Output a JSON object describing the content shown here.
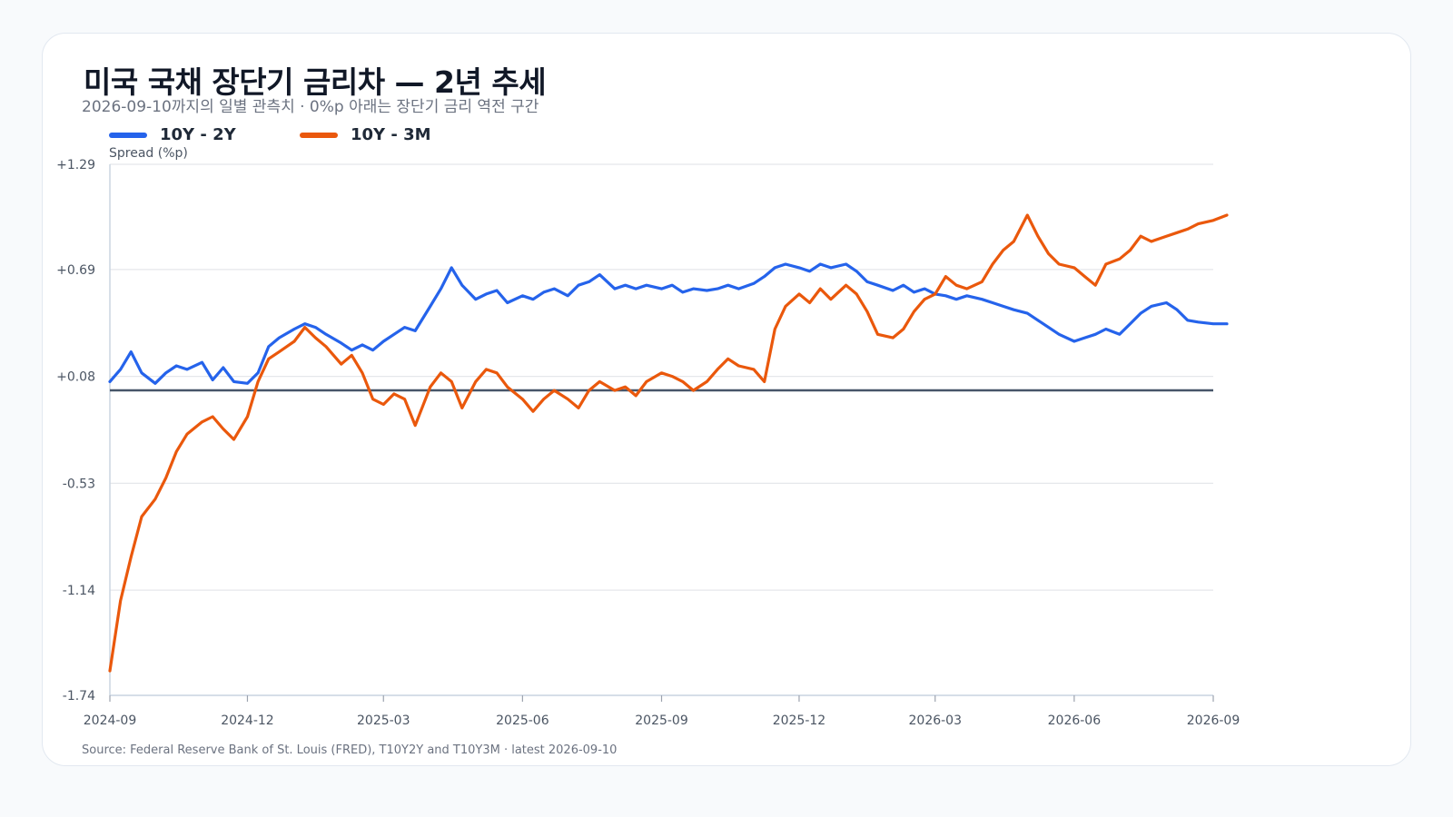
{
  "title": "미국 국채 장단기 금리차 — 2년 추세",
  "subtitle": "2026-09-10까지의 일별 관측치 · 0%p 아래는 장단기 금리 역전 구간",
  "source": "Source: Federal Reserve Bank of St. Louis (FRED), T10Y2Y and T10Y3M · latest 2026-09-10",
  "colors": {
    "series_2y": "#2563eb",
    "series_3m": "#ea580c",
    "zero_line": "#475569",
    "grid": "#e5e7eb",
    "axis": "#cbd5e1"
  },
  "chart_data": {
    "type": "line",
    "title": "미국 국채 장단기 금리차 — 2년 추세",
    "xlabel": "",
    "ylabel": "Spread (%p)",
    "ylim": [
      -1.74,
      1.29
    ],
    "yticks": [
      "+1.29",
      "+0.69",
      "+0.08",
      "-0.53",
      "-1.14",
      "-1.74"
    ],
    "ytick_values": [
      1.29,
      0.69,
      0.08,
      -0.53,
      -1.14,
      -1.74
    ],
    "xlim": [
      "2024-09",
      "2026-09"
    ],
    "xticks": [
      "2024-09",
      "2024-12",
      "2025-03",
      "2025-06",
      "2025-09",
      "2025-12",
      "2026-03",
      "2026-06",
      "2026-09"
    ],
    "zero_line": 0,
    "legend_position": "top-left",
    "grid": true,
    "series": [
      {
        "name": "10Y - 2Y",
        "color": "#2563eb",
        "points": [
          [
            "2024-09-01",
            0.05
          ],
          [
            "2024-09-08",
            0.12
          ],
          [
            "2024-09-15",
            0.22
          ],
          [
            "2024-09-22",
            0.1
          ],
          [
            "2024-10-01",
            0.04
          ],
          [
            "2024-10-08",
            0.1
          ],
          [
            "2024-10-15",
            0.14
          ],
          [
            "2024-10-22",
            0.12
          ],
          [
            "2024-11-01",
            0.16
          ],
          [
            "2024-11-08",
            0.06
          ],
          [
            "2024-11-15",
            0.13
          ],
          [
            "2024-11-22",
            0.05
          ],
          [
            "2024-12-01",
            0.04
          ],
          [
            "2024-12-08",
            0.1
          ],
          [
            "2024-12-15",
            0.25
          ],
          [
            "2024-12-22",
            0.3
          ],
          [
            "2025-01-01",
            0.35
          ],
          [
            "2025-01-08",
            0.38
          ],
          [
            "2025-01-15",
            0.36
          ],
          [
            "2025-01-22",
            0.32
          ],
          [
            "2025-02-01",
            0.27
          ],
          [
            "2025-02-08",
            0.23
          ],
          [
            "2025-02-15",
            0.26
          ],
          [
            "2025-02-22",
            0.23
          ],
          [
            "2025-03-01",
            0.28
          ],
          [
            "2025-03-08",
            0.32
          ],
          [
            "2025-03-15",
            0.36
          ],
          [
            "2025-03-22",
            0.34
          ],
          [
            "2025-04-01",
            0.48
          ],
          [
            "2025-04-08",
            0.58
          ],
          [
            "2025-04-15",
            0.7
          ],
          [
            "2025-04-22",
            0.6
          ],
          [
            "2025-05-01",
            0.52
          ],
          [
            "2025-05-08",
            0.55
          ],
          [
            "2025-05-15",
            0.57
          ],
          [
            "2025-05-22",
            0.5
          ],
          [
            "2025-06-01",
            0.54
          ],
          [
            "2025-06-08",
            0.52
          ],
          [
            "2025-06-15",
            0.56
          ],
          [
            "2025-06-22",
            0.58
          ],
          [
            "2025-07-01",
            0.54
          ],
          [
            "2025-07-08",
            0.6
          ],
          [
            "2025-07-15",
            0.62
          ],
          [
            "2025-07-22",
            0.66
          ],
          [
            "2025-08-01",
            0.58
          ],
          [
            "2025-08-08",
            0.6
          ],
          [
            "2025-08-15",
            0.58
          ],
          [
            "2025-08-22",
            0.6
          ],
          [
            "2025-09-01",
            0.58
          ],
          [
            "2025-09-08",
            0.6
          ],
          [
            "2025-09-15",
            0.56
          ],
          [
            "2025-09-22",
            0.58
          ],
          [
            "2025-10-01",
            0.57
          ],
          [
            "2025-10-08",
            0.58
          ],
          [
            "2025-10-15",
            0.6
          ],
          [
            "2025-10-22",
            0.58
          ],
          [
            "2025-11-01",
            0.61
          ],
          [
            "2025-11-08",
            0.65
          ],
          [
            "2025-11-15",
            0.7
          ],
          [
            "2025-11-22",
            0.72
          ],
          [
            "2025-12-01",
            0.7
          ],
          [
            "2025-12-08",
            0.68
          ],
          [
            "2025-12-15",
            0.72
          ],
          [
            "2025-12-22",
            0.7
          ],
          [
            "2026-01-01",
            0.72
          ],
          [
            "2026-01-08",
            0.68
          ],
          [
            "2026-01-15",
            0.62
          ],
          [
            "2026-01-22",
            0.6
          ],
          [
            "2026-02-01",
            0.57
          ],
          [
            "2026-02-08",
            0.6
          ],
          [
            "2026-02-15",
            0.56
          ],
          [
            "2026-02-22",
            0.58
          ],
          [
            "2026-03-01",
            0.55
          ],
          [
            "2026-03-08",
            0.54
          ],
          [
            "2026-03-15",
            0.52
          ],
          [
            "2026-03-22",
            0.54
          ],
          [
            "2026-04-01",
            0.52
          ],
          [
            "2026-04-08",
            0.5
          ],
          [
            "2026-04-15",
            0.48
          ],
          [
            "2026-04-22",
            0.46
          ],
          [
            "2026-05-01",
            0.44
          ],
          [
            "2026-05-08",
            0.4
          ],
          [
            "2026-05-15",
            0.36
          ],
          [
            "2026-05-22",
            0.32
          ],
          [
            "2026-06-01",
            0.28
          ],
          [
            "2026-06-08",
            0.3
          ],
          [
            "2026-06-15",
            0.32
          ],
          [
            "2026-06-22",
            0.35
          ],
          [
            "2026-07-01",
            0.32
          ],
          [
            "2026-07-08",
            0.38
          ],
          [
            "2026-07-15",
            0.44
          ],
          [
            "2026-07-22",
            0.48
          ],
          [
            "2026-08-01",
            0.5
          ],
          [
            "2026-08-08",
            0.46
          ],
          [
            "2026-08-15",
            0.4
          ],
          [
            "2026-08-22",
            0.39
          ],
          [
            "2026-09-01",
            0.38
          ],
          [
            "2026-09-10",
            0.38
          ]
        ]
      },
      {
        "name": "10Y - 3M",
        "color": "#ea580c",
        "points": [
          [
            "2024-09-01",
            -1.6
          ],
          [
            "2024-09-08",
            -1.2
          ],
          [
            "2024-09-15",
            -0.95
          ],
          [
            "2024-09-22",
            -0.72
          ],
          [
            "2024-10-01",
            -0.62
          ],
          [
            "2024-10-08",
            -0.5
          ],
          [
            "2024-10-15",
            -0.35
          ],
          [
            "2024-10-22",
            -0.25
          ],
          [
            "2024-11-01",
            -0.18
          ],
          [
            "2024-11-08",
            -0.15
          ],
          [
            "2024-11-15",
            -0.22
          ],
          [
            "2024-11-22",
            -0.28
          ],
          [
            "2024-12-01",
            -0.15
          ],
          [
            "2024-12-08",
            0.05
          ],
          [
            "2024-12-15",
            0.18
          ],
          [
            "2024-12-22",
            0.22
          ],
          [
            "2025-01-01",
            0.28
          ],
          [
            "2025-01-08",
            0.36
          ],
          [
            "2025-01-15",
            0.3
          ],
          [
            "2025-01-22",
            0.25
          ],
          [
            "2025-02-01",
            0.15
          ],
          [
            "2025-02-08",
            0.2
          ],
          [
            "2025-02-15",
            0.1
          ],
          [
            "2025-02-22",
            -0.05
          ],
          [
            "2025-03-01",
            -0.08
          ],
          [
            "2025-03-08",
            -0.02
          ],
          [
            "2025-03-15",
            -0.05
          ],
          [
            "2025-03-22",
            -0.2
          ],
          [
            "2025-04-01",
            0.02
          ],
          [
            "2025-04-08",
            0.1
          ],
          [
            "2025-04-15",
            0.05
          ],
          [
            "2025-04-22",
            -0.1
          ],
          [
            "2025-05-01",
            0.05
          ],
          [
            "2025-05-08",
            0.12
          ],
          [
            "2025-05-15",
            0.1
          ],
          [
            "2025-05-22",
            0.02
          ],
          [
            "2025-06-01",
            -0.05
          ],
          [
            "2025-06-08",
            -0.12
          ],
          [
            "2025-06-15",
            -0.05
          ],
          [
            "2025-06-22",
            0.0
          ],
          [
            "2025-07-01",
            -0.05
          ],
          [
            "2025-07-08",
            -0.1
          ],
          [
            "2025-07-15",
            0.0
          ],
          [
            "2025-07-22",
            0.05
          ],
          [
            "2025-08-01",
            0.0
          ],
          [
            "2025-08-08",
            0.02
          ],
          [
            "2025-08-15",
            -0.03
          ],
          [
            "2025-08-22",
            0.05
          ],
          [
            "2025-09-01",
            0.1
          ],
          [
            "2025-09-08",
            0.08
          ],
          [
            "2025-09-15",
            0.05
          ],
          [
            "2025-09-22",
            0.0
          ],
          [
            "2025-10-01",
            0.05
          ],
          [
            "2025-10-08",
            0.12
          ],
          [
            "2025-10-15",
            0.18
          ],
          [
            "2025-10-22",
            0.14
          ],
          [
            "2025-11-01",
            0.12
          ],
          [
            "2025-11-08",
            0.05
          ],
          [
            "2025-11-15",
            0.35
          ],
          [
            "2025-11-22",
            0.48
          ],
          [
            "2025-12-01",
            0.55
          ],
          [
            "2025-12-08",
            0.5
          ],
          [
            "2025-12-15",
            0.58
          ],
          [
            "2025-12-22",
            0.52
          ],
          [
            "2026-01-01",
            0.6
          ],
          [
            "2026-01-08",
            0.55
          ],
          [
            "2026-01-15",
            0.45
          ],
          [
            "2026-01-22",
            0.32
          ],
          [
            "2026-02-01",
            0.3
          ],
          [
            "2026-02-08",
            0.35
          ],
          [
            "2026-02-15",
            0.45
          ],
          [
            "2026-02-22",
            0.52
          ],
          [
            "2026-03-01",
            0.55
          ],
          [
            "2026-03-08",
            0.65
          ],
          [
            "2026-03-15",
            0.6
          ],
          [
            "2026-03-22",
            0.58
          ],
          [
            "2026-04-01",
            0.62
          ],
          [
            "2026-04-08",
            0.72
          ],
          [
            "2026-04-15",
            0.8
          ],
          [
            "2026-04-22",
            0.85
          ],
          [
            "2026-05-01",
            1.0
          ],
          [
            "2026-05-08",
            0.88
          ],
          [
            "2026-05-15",
            0.78
          ],
          [
            "2026-05-22",
            0.72
          ],
          [
            "2026-06-01",
            0.7
          ],
          [
            "2026-06-08",
            0.65
          ],
          [
            "2026-06-15",
            0.6
          ],
          [
            "2026-06-22",
            0.72
          ],
          [
            "2026-07-01",
            0.75
          ],
          [
            "2026-07-08",
            0.8
          ],
          [
            "2026-07-15",
            0.88
          ],
          [
            "2026-07-22",
            0.85
          ],
          [
            "2026-08-01",
            0.88
          ],
          [
            "2026-08-08",
            0.9
          ],
          [
            "2026-08-15",
            0.92
          ],
          [
            "2026-08-22",
            0.95
          ],
          [
            "2026-09-01",
            0.97
          ],
          [
            "2026-09-10",
            1.0
          ]
        ]
      }
    ]
  }
}
